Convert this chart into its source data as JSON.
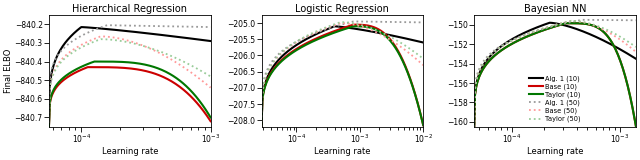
{
  "colors": {
    "alg1_10": "#000000",
    "base_10": "#cc0000",
    "taylor_10": "#007700",
    "alg1_50": "#999999",
    "base_50": "#ff9999",
    "taylor_50": "#99cc99"
  },
  "lw_solid": 1.5,
  "lw_dot": 1.3,
  "panel1": {
    "title": "Hierarchical Regression",
    "xlabel": "Learning rate",
    "ylabel": "Final ELBO",
    "xlim_log": [
      -4.25,
      -3.0
    ],
    "ylim": [
      -840.75,
      -840.15
    ],
    "yticks": [
      -840.7,
      -840.6,
      -840.5,
      -840.4,
      -840.3,
      -840.2
    ]
  },
  "panel2": {
    "title": "Logistic Regression",
    "xlabel": "Learning rate",
    "ylabel": "",
    "xlim_log": [
      -4.55,
      -2.0
    ],
    "ylim": [
      -208.2,
      -204.75
    ],
    "yticks": [
      -208.0,
      -207.5,
      -207.0,
      -206.5,
      -206.0,
      -205.5,
      -205.0
    ]
  },
  "panel3": {
    "title": "Bayesian NN",
    "xlabel": "Learning rate",
    "ylabel": "",
    "xlim_log": [
      -4.35,
      -2.85
    ],
    "ylim": [
      -160.5,
      -149.0
    ],
    "yticks": [
      -160,
      -158,
      -156,
      -154,
      -152,
      -150
    ]
  },
  "legend_labels": [
    "Alg. 1 (10)",
    "Base (10)",
    "Taylor (10)",
    "Alg. 1 (50)",
    "Base (50)",
    "Taylor (50)"
  ]
}
